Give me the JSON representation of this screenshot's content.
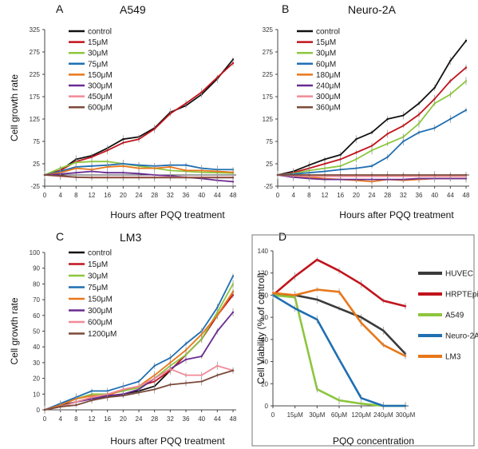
{
  "chart_data": [
    {
      "type": "line",
      "panel_letter": "A",
      "title": "A549",
      "xlabel": "Hours after PQQ treatment",
      "ylabel": "Cell growth rate",
      "x": [
        0,
        4,
        8,
        12,
        16,
        20,
        24,
        28,
        32,
        36,
        40,
        44,
        48
      ],
      "ylim": [
        -25,
        325
      ],
      "yticks": [
        -25,
        25,
        75,
        125,
        175,
        225,
        275,
        325
      ],
      "legend_position": "top-left",
      "series": [
        {
          "name": "control",
          "color": "#111111",
          "values": [
            0,
            10,
            35,
            43,
            60,
            80,
            85,
            105,
            140,
            155,
            180,
            215,
            258
          ]
        },
        {
          "name": "15μM",
          "color": "#c0141c",
          "values": [
            0,
            10,
            30,
            40,
            55,
            72,
            80,
            103,
            137,
            160,
            185,
            218,
            250
          ]
        },
        {
          "name": "30μM",
          "color": "#8dc63f",
          "values": [
            0,
            15,
            28,
            30,
            30,
            25,
            20,
            15,
            10,
            8,
            6,
            5,
            4
          ]
        },
        {
          "name": "75μM",
          "color": "#1f6fb2",
          "values": [
            0,
            8,
            18,
            20,
            22,
            25,
            22,
            20,
            22,
            22,
            15,
            12,
            12
          ]
        },
        {
          "name": "150μM",
          "color": "#e8771a",
          "values": [
            0,
            5,
            15,
            12,
            18,
            20,
            15,
            15,
            18,
            10,
            10,
            8,
            6
          ]
        },
        {
          "name": "300μM",
          "color": "#6a2c91",
          "values": [
            0,
            2,
            5,
            8,
            5,
            5,
            3,
            0,
            -2,
            -5,
            -8,
            -12,
            -15
          ]
        },
        {
          "name": "450μM",
          "color": "#f08a96",
          "values": [
            0,
            -3,
            -5,
            -5,
            -5,
            -5,
            -5,
            -5,
            -5,
            -5,
            -5,
            -5,
            -5
          ]
        },
        {
          "name": "600μM",
          "color": "#7b4a3a",
          "values": [
            0,
            -2,
            -5,
            -6,
            -6,
            -6,
            -6,
            -6,
            -6,
            -6,
            -6,
            -6,
            -6
          ]
        }
      ]
    },
    {
      "type": "line",
      "panel_letter": "B",
      "title": "Neuro-2A",
      "xlabel": "Hours after PQQ treatment",
      "ylabel": "",
      "x": [
        0,
        4,
        8,
        12,
        16,
        20,
        24,
        28,
        32,
        36,
        40,
        44,
        48
      ],
      "ylim": [
        -25,
        325
      ],
      "yticks": [
        -25,
        25,
        75,
        125,
        175,
        225,
        275,
        325
      ],
      "legend_position": "top-left",
      "series": [
        {
          "name": "control",
          "color": "#111111",
          "values": [
            0,
            8,
            22,
            35,
            45,
            80,
            95,
            125,
            133,
            160,
            195,
            255,
            300
          ]
        },
        {
          "name": "15μM",
          "color": "#c0141c",
          "values": [
            0,
            5,
            15,
            25,
            35,
            50,
            65,
            92,
            110,
            135,
            170,
            210,
            240
          ]
        },
        {
          "name": "30μM",
          "color": "#8dc63f",
          "values": [
            0,
            3,
            10,
            15,
            20,
            35,
            55,
            70,
            85,
            115,
            160,
            180,
            210
          ]
        },
        {
          "name": "60μM",
          "color": "#1f6fb2",
          "values": [
            0,
            2,
            5,
            8,
            12,
            15,
            20,
            40,
            75,
            95,
            105,
            125,
            145
          ]
        },
        {
          "name": "180μM",
          "color": "#e8771a",
          "values": [
            0,
            -5,
            -5,
            -8,
            -10,
            -12,
            -15,
            -10,
            -12,
            -10,
            -8,
            -8,
            -8
          ]
        },
        {
          "name": "240μM",
          "color": "#6a2c91",
          "values": [
            0,
            -5,
            -8,
            -10,
            -10,
            -10,
            -10,
            -10,
            -10,
            -8,
            -8,
            -8,
            -8
          ]
        },
        {
          "name": "300μM",
          "color": "#f08a96",
          "values": [
            0,
            -2,
            -3,
            -3,
            -3,
            -3,
            -3,
            -3,
            -3,
            -3,
            -3,
            -3,
            -3
          ]
        },
        {
          "name": "360μM",
          "color": "#7b4a3a",
          "values": [
            0,
            0,
            0,
            0,
            0,
            0,
            0,
            0,
            0,
            0,
            0,
            0,
            0
          ]
        }
      ]
    },
    {
      "type": "line",
      "panel_letter": "C",
      "title": "LM3",
      "xlabel": "Hours after PQQ treatment",
      "ylabel": "Cell growth rate",
      "x": [
        0,
        4,
        8,
        12,
        16,
        20,
        24,
        28,
        32,
        36,
        40,
        44,
        48
      ],
      "ylim": [
        0,
        100
      ],
      "yticks": [
        0,
        10,
        20,
        30,
        40,
        50,
        60,
        70,
        80,
        90,
        100
      ],
      "legend_position": "top-left",
      "series": [
        {
          "name": "control",
          "color": "#111111",
          "values": [
            0,
            3,
            5,
            7,
            8,
            10,
            12,
            15,
            25,
            35,
            45,
            60,
            75
          ]
        },
        {
          "name": "15μM",
          "color": "#c0141c",
          "values": [
            0,
            2,
            5,
            8,
            10,
            12,
            15,
            18,
            25,
            35,
            45,
            60,
            73
          ]
        },
        {
          "name": "30μM",
          "color": "#8dc63f",
          "values": [
            0,
            3,
            7,
            10,
            10,
            12,
            14,
            20,
            28,
            35,
            45,
            62,
            80
          ]
        },
        {
          "name": "75μM",
          "color": "#1f6fb2",
          "values": [
            0,
            4,
            8,
            12,
            12,
            15,
            18,
            28,
            33,
            42,
            50,
            65,
            85
          ]
        },
        {
          "name": "150μM",
          "color": "#e8771a",
          "values": [
            0,
            3,
            7,
            9,
            9,
            13,
            15,
            22,
            30,
            38,
            48,
            60,
            75
          ]
        },
        {
          "name": "300μM",
          "color": "#6a2c91",
          "values": [
            0,
            2,
            5,
            7,
            9,
            10,
            13,
            20,
            26,
            32,
            34,
            50,
            62
          ]
        },
        {
          "name": "600μM",
          "color": "#f08a96",
          "values": [
            0,
            2,
            5,
            8,
            10,
            13,
            15,
            20,
            26,
            22,
            22,
            28,
            25
          ]
        },
        {
          "name": "1200μM",
          "color": "#7b4a3a",
          "values": [
            0,
            2,
            3,
            6,
            8,
            9,
            11,
            13,
            16,
            17,
            18,
            22,
            25
          ]
        }
      ]
    },
    {
      "type": "line",
      "panel_letter": "D",
      "title": "",
      "xlabel": "PQQ concentration",
      "ylabel": "Cell Viability (% of control)",
      "categories": [
        "0",
        "15μM",
        "30μM",
        "60μM",
        "120μM",
        "240μM",
        "300μM"
      ],
      "ylim": [
        0,
        140
      ],
      "yticks": [
        0,
        20,
        40,
        60,
        80,
        100,
        120,
        140
      ],
      "legend_position": "right",
      "series": [
        {
          "name": "HUVEC",
          "color": "#3a3a3a",
          "values": [
            100,
            100,
            96,
            88,
            80,
            68,
            47
          ]
        },
        {
          "name": "HRPTEpiC",
          "color": "#c0141c",
          "values": [
            100,
            117,
            132,
            122,
            110,
            95,
            90
          ]
        },
        {
          "name": "A549",
          "color": "#8dc63f",
          "values": [
            100,
            98,
            15,
            5,
            2,
            0,
            0
          ]
        },
        {
          "name": "Neuro-2A",
          "color": "#1f6fb2",
          "values": [
            100,
            88,
            78,
            42,
            7,
            0,
            0
          ]
        },
        {
          "name": "LM3",
          "color": "#e8771a",
          "values": [
            102,
            100,
            105,
            103,
            75,
            55,
            45
          ]
        }
      ]
    }
  ]
}
